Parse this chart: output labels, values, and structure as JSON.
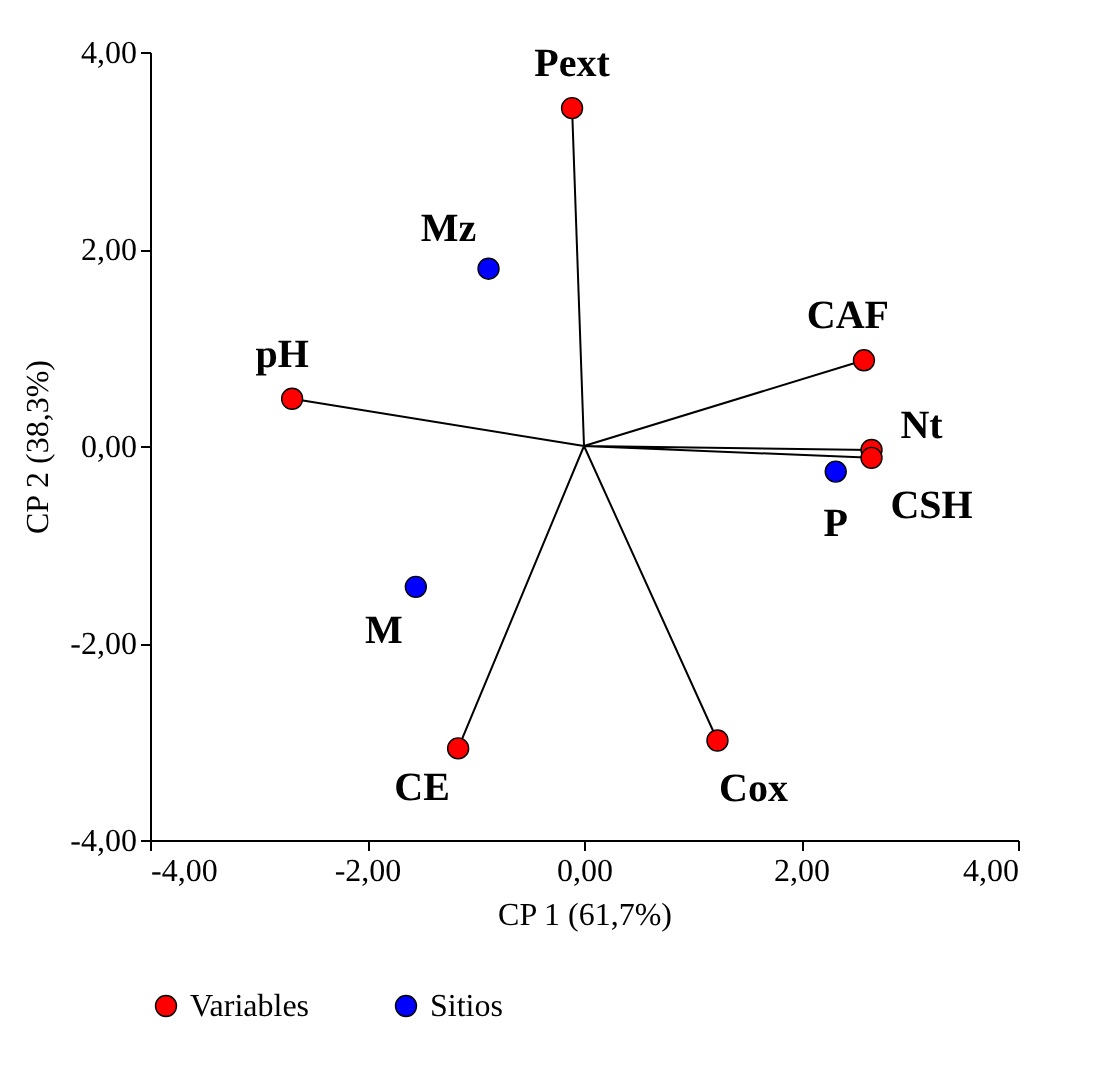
{
  "chart_data": {
    "type": "scatter",
    "xlabel": "CP 1 (61,7%)",
    "ylabel": "CP 2 (38,3%)",
    "xlim": [
      -4,
      4
    ],
    "ylim": [
      -4,
      4
    ],
    "xticks": [
      {
        "value": -4,
        "label": "-4,00"
      },
      {
        "value": -2,
        "label": "-2,00"
      },
      {
        "value": 0,
        "label": "0,00"
      },
      {
        "value": 2,
        "label": "2,00"
      },
      {
        "value": 4,
        "label": "4,00"
      }
    ],
    "yticks": [
      {
        "value": -4,
        "label": "-4,00"
      },
      {
        "value": -2,
        "label": "-2,00"
      },
      {
        "value": 0,
        "label": "0,00"
      },
      {
        "value": 2,
        "label": "2,00"
      },
      {
        "value": 4,
        "label": "4,00"
      }
    ],
    "series": [
      {
        "type": "line",
        "marker": "none",
        "color": "#000000",
        "x": [
          0,
          -0.11,
          0,
          -2.69,
          0,
          2.58,
          0,
          2.65,
          0,
          2.65,
          0,
          1.23,
          0,
          -1.16
        ],
        "values": [
          0,
          3.43,
          0,
          0.48,
          0,
          0.87,
          0,
          -0.04,
          0,
          -0.12,
          0,
          -2.99,
          0,
          -3.07
        ]
      },
      {
        "name": "Variables",
        "color": "#ff0000",
        "x": [
          -0.11,
          -2.69,
          2.58,
          2.65,
          2.65,
          1.23,
          -1.16
        ],
        "values": [
          3.43,
          0.48,
          0.87,
          -0.04,
          -0.12,
          -2.99,
          -3.07
        ]
      },
      {
        "name": "Sitios",
        "color": "#0000ff",
        "x": [
          -0.88,
          -1.55,
          2.32
        ],
        "values": [
          1.8,
          -1.43,
          -0.26
        ]
      }
    ],
    "annotations": [
      {
        "text": "Pext",
        "x": -0.11,
        "y": 3.43
      },
      {
        "text": "pH",
        "x": -2.69,
        "y": 0.48
      },
      {
        "text": "CAF",
        "x": 2.58,
        "y": 0.87
      },
      {
        "text": "Nt",
        "x": 2.65,
        "y": -0.04
      },
      {
        "text": "CSH",
        "x": 2.65,
        "y": -0.12
      },
      {
        "text": "Cox",
        "x": 1.23,
        "y": -2.99
      },
      {
        "text": "CE",
        "x": -1.16,
        "y": -3.07
      },
      {
        "text": "Mz",
        "x": -0.88,
        "y": 1.8
      },
      {
        "text": "M",
        "x": -1.55,
        "y": -1.43
      },
      {
        "text": "P",
        "x": 2.32,
        "y": -0.26
      }
    ],
    "legend": "bottom",
    "grid": false,
    "marker": "circle"
  }
}
